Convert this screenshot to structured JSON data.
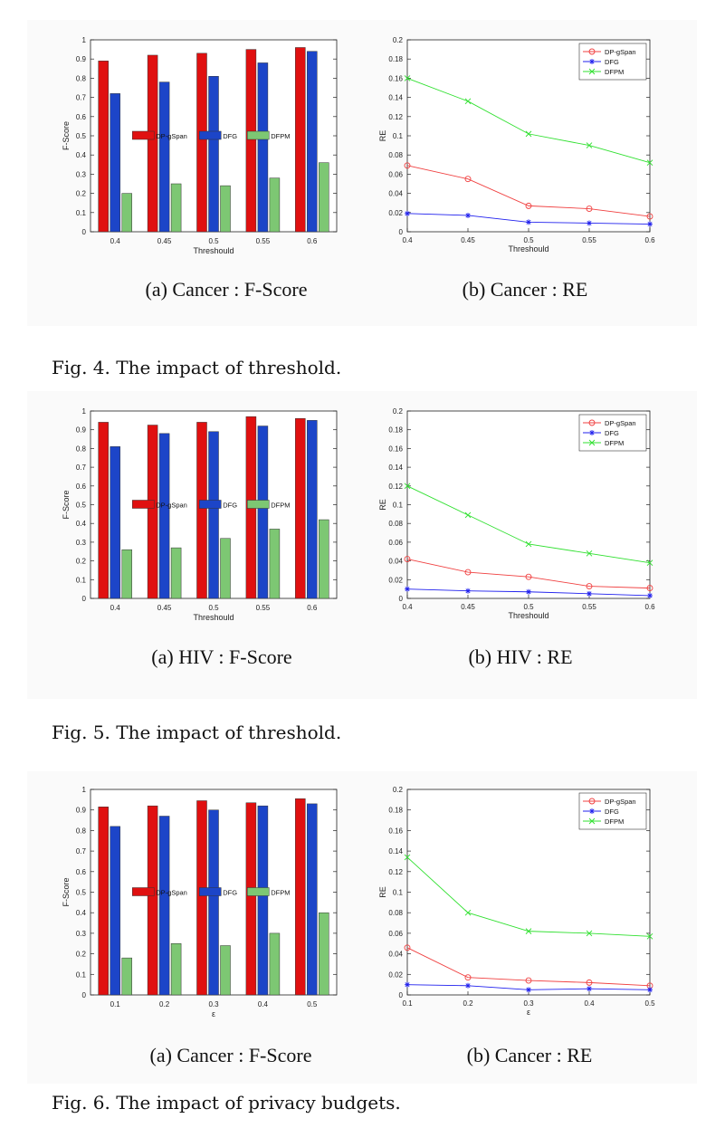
{
  "figures": [
    {
      "caption": "Fig. 4.   The impact of threshold.",
      "subcaptions": [
        "(a) Cancer : F-Score",
        "(b) Cancer : RE"
      ]
    },
    {
      "caption": "Fig. 5.   The impact of threshold.",
      "subcaptions": [
        "(a) HIV : F-Score",
        "(b) HIV : RE"
      ]
    },
    {
      "caption": "Fig. 6.   The impact of privacy budgets.",
      "subcaptions": [
        "(a) Cancer : F-Score",
        "(b) Cancer : RE"
      ]
    }
  ],
  "series_colors": {
    "DP-gSpan": "#e01010",
    "DFG": "#1c45c8",
    "DFPM": "#7dc773"
  },
  "line_colors": {
    "DP-gSpan": "#f04040",
    "DFG": "#2020ee",
    "DFPM": "#30e030"
  },
  "chart_data": [
    {
      "type": "bar",
      "categories": [
        "0.4",
        "0.45",
        "0.5",
        "0.55",
        "0.6"
      ],
      "series": [
        {
          "name": "DP-gSpan",
          "values": [
            0.89,
            0.92,
            0.93,
            0.95,
            0.96
          ]
        },
        {
          "name": "DFG",
          "values": [
            0.72,
            0.78,
            0.81,
            0.88,
            0.94
          ]
        },
        {
          "name": "DFPM",
          "values": [
            0.2,
            0.25,
            0.24,
            0.28,
            0.36
          ]
        }
      ],
      "xlabel": "Threshould",
      "ylabel": "F-Score",
      "ylim": [
        0,
        1
      ],
      "yticks": [
        "0",
        "0.1",
        "0.2",
        "0.3",
        "0.4",
        "0.5",
        "0.6",
        "0.7",
        "0.8",
        "0.9",
        "1"
      ],
      "legend": "center, horizontal",
      "grid": false
    },
    {
      "type": "line",
      "x": [
        0.4,
        0.45,
        0.5,
        0.55,
        0.6
      ],
      "xticks": [
        "0.4",
        "0.45",
        "0.5",
        "0.55",
        "0.6"
      ],
      "series": [
        {
          "name": "DP-gSpan",
          "marker": "o",
          "values": [
            0.069,
            0.055,
            0.027,
            0.024,
            0.016
          ]
        },
        {
          "name": "DFG",
          "marker": "*",
          "values": [
            0.019,
            0.017,
            0.01,
            0.009,
            0.008
          ]
        },
        {
          "name": "DFPM",
          "marker": "x",
          "values": [
            0.16,
            0.136,
            0.102,
            0.09,
            0.072
          ]
        }
      ],
      "xlabel": "Threshould",
      "ylabel": "RE",
      "xlim": [
        0.4,
        0.6
      ],
      "ylim": [
        0,
        0.2
      ],
      "yticks": [
        "0",
        "0.02",
        "0.04",
        "0.06",
        "0.08",
        "0.1",
        "0.12",
        "0.14",
        "0.16",
        "0.18",
        "0.2"
      ],
      "legend": "top-right",
      "grid": false
    },
    {
      "type": "bar",
      "categories": [
        "0.4",
        "0.45",
        "0.5",
        "0.55",
        "0.6"
      ],
      "series": [
        {
          "name": "DP-gSpan",
          "values": [
            0.94,
            0.925,
            0.94,
            0.97,
            0.96
          ]
        },
        {
          "name": "DFG",
          "values": [
            0.81,
            0.88,
            0.89,
            0.92,
            0.95
          ]
        },
        {
          "name": "DFPM",
          "values": [
            0.26,
            0.27,
            0.32,
            0.37,
            0.42
          ]
        }
      ],
      "xlabel": "Threshould",
      "ylabel": "F-Score",
      "ylim": [
        0,
        1
      ],
      "yticks": [
        "0",
        "0.1",
        "0.2",
        "0.3",
        "0.4",
        "0.5",
        "0.6",
        "0.7",
        "0.8",
        "0.9",
        "1"
      ],
      "legend": "center, horizontal",
      "grid": false
    },
    {
      "type": "line",
      "x": [
        0.4,
        0.45,
        0.5,
        0.55,
        0.6
      ],
      "xticks": [
        "0.4",
        "0.45",
        "0.5",
        "0.55",
        "0.6"
      ],
      "series": [
        {
          "name": "DP-gSpan",
          "marker": "o",
          "values": [
            0.042,
            0.028,
            0.023,
            0.013,
            0.011
          ]
        },
        {
          "name": "DFG",
          "marker": "*",
          "values": [
            0.01,
            0.008,
            0.007,
            0.005,
            0.003
          ]
        },
        {
          "name": "DFPM",
          "marker": "x",
          "values": [
            0.12,
            0.089,
            0.058,
            0.048,
            0.038
          ]
        }
      ],
      "xlabel": "Threshould",
      "ylabel": "RE",
      "xlim": [
        0.4,
        0.6
      ],
      "ylim": [
        0,
        0.2
      ],
      "yticks": [
        "0",
        "0.02",
        "0.04",
        "0.06",
        "0.08",
        "0.1",
        "0.12",
        "0.14",
        "0.16",
        "0.18",
        "0.2"
      ],
      "legend": "top-right",
      "grid": false
    },
    {
      "type": "bar",
      "categories": [
        "0.1",
        "0.2",
        "0.3",
        "0.4",
        "0.5"
      ],
      "series": [
        {
          "name": "DP-gSpan",
          "values": [
            0.915,
            0.92,
            0.945,
            0.935,
            0.955
          ]
        },
        {
          "name": "DFG",
          "values": [
            0.82,
            0.87,
            0.9,
            0.92,
            0.93
          ]
        },
        {
          "name": "DFPM",
          "values": [
            0.18,
            0.25,
            0.24,
            0.3,
            0.4
          ]
        }
      ],
      "xlabel": "ε",
      "ylabel": "F-Score",
      "ylim": [
        0,
        1
      ],
      "yticks": [
        "0",
        "0.1",
        "0.2",
        "0.3",
        "0.4",
        "0.5",
        "0.6",
        "0.7",
        "0.8",
        "0.9",
        "1"
      ],
      "legend": "center, horizontal",
      "grid": false
    },
    {
      "type": "line",
      "x": [
        0.1,
        0.2,
        0.3,
        0.4,
        0.5
      ],
      "xticks": [
        "0.1",
        "0.2",
        "0.3",
        "0.4",
        "0.5"
      ],
      "series": [
        {
          "name": "DP-gSpan",
          "marker": "o",
          "values": [
            0.046,
            0.017,
            0.014,
            0.012,
            0.009
          ]
        },
        {
          "name": "DFG",
          "marker": "*",
          "values": [
            0.01,
            0.009,
            0.005,
            0.006,
            0.005
          ]
        },
        {
          "name": "DFPM",
          "marker": "x",
          "values": [
            0.134,
            0.08,
            0.062,
            0.06,
            0.057
          ]
        }
      ],
      "xlabel": "ε",
      "ylabel": "RE",
      "xlim": [
        0.1,
        0.5
      ],
      "ylim": [
        0,
        0.2
      ],
      "yticks": [
        "0",
        "0.02",
        "0.04",
        "0.06",
        "0.08",
        "0.1",
        "0.12",
        "0.14",
        "0.16",
        "0.18",
        "0.2"
      ],
      "legend": "top-right",
      "grid": false
    }
  ]
}
